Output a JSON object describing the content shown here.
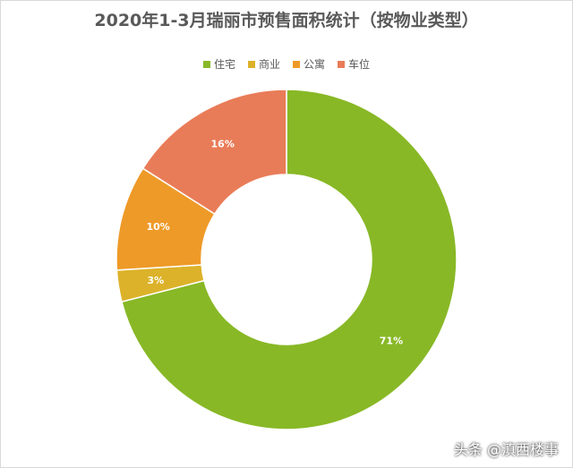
{
  "chart_data": {
    "type": "pie",
    "title": "2020年1-3月瑞丽市预售面积统计（按物业类型）",
    "legend_position": "top",
    "donut": true,
    "categories": [
      "住宅",
      "商业",
      "公寓",
      "车位"
    ],
    "values": [
      71,
      3,
      10,
      16
    ],
    "labels": [
      "71%",
      "3%",
      "10%",
      "16%"
    ],
    "colors": [
      "#88b826",
      "#dcb22a",
      "#ee9a28",
      "#e97c58"
    ]
  },
  "watermark": "头条 @滇西楼事"
}
